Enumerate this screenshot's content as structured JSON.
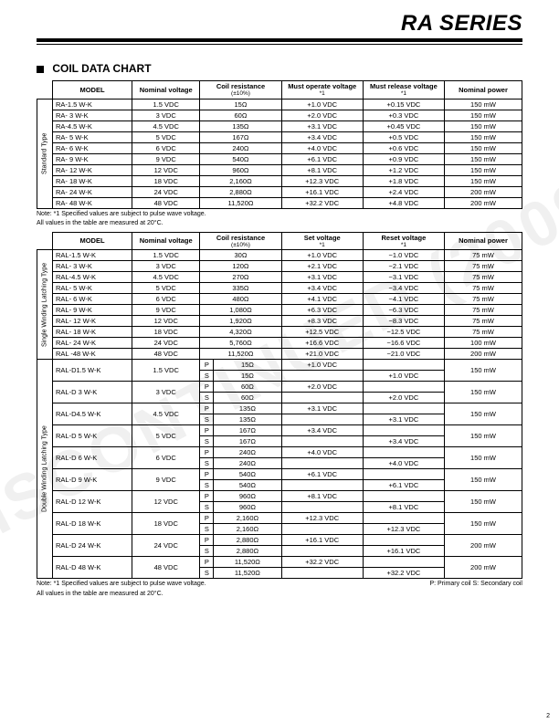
{
  "header": "RA SERIES",
  "watermark": "DISCONTINUED (2009)",
  "page_num": "2",
  "section_title": "COIL DATA CHART",
  "tbl1": {
    "side_label": "Standard Type",
    "headers": {
      "model": "MODEL",
      "nominal_voltage": "Nominal voltage",
      "coil_resistance": "Coil resistance",
      "coil_resistance_sub": "(±10%)",
      "must_operate": "Must operate voltage",
      "must_operate_sub": "*1",
      "must_release": "Must release voltage",
      "must_release_sub": "*1",
      "nominal_power": "Nominal power"
    },
    "rows": [
      {
        "model": "RA-1.5 W-K",
        "nv": "1.5 VDC",
        "cr": "15Ω",
        "mo": "+1.0 VDC",
        "mr": "+0.15 VDC",
        "np": "150 mW"
      },
      {
        "model": "RA-  3 W-K",
        "nv": "3 VDC",
        "cr": "60Ω",
        "mo": "+2.0 VDC",
        "mr": "+0.3  VDC",
        "np": "150 mW"
      },
      {
        "model": "RA-4.5 W-K",
        "nv": "4.5 VDC",
        "cr": "135Ω",
        "mo": "+3.1 VDC",
        "mr": "+0.45 VDC",
        "np": "150 mW"
      },
      {
        "model": "RA-  5 W-K",
        "nv": "5 VDC",
        "cr": "167Ω",
        "mo": "+3.4 VDC",
        "mr": "+0.5  VDC",
        "np": "150 mW"
      },
      {
        "model": "RA-  6 W-K",
        "nv": "6 VDC",
        "cr": "240Ω",
        "mo": "+4.0 VDC",
        "mr": "+0.6  VDC",
        "np": "150 mW"
      },
      {
        "model": "RA-  9 W-K",
        "nv": "9 VDC",
        "cr": "540Ω",
        "mo": "+6.1 VDC",
        "mr": "+0.9  VDC",
        "np": "150 mW"
      },
      {
        "model": "RA- 12 W-K",
        "nv": "12 VDC",
        "cr": "960Ω",
        "mo": "+8.1 VDC",
        "mr": "+1.2  VDC",
        "np": "150 mW"
      },
      {
        "model": "RA- 18 W-K",
        "nv": "18 VDC",
        "cr": "2,160Ω",
        "mo": "+12.3 VDC",
        "mr": "+1.8  VDC",
        "np": "150 mW"
      },
      {
        "model": "RA- 24 W-K",
        "nv": "24 VDC",
        "cr": "2,880Ω",
        "mo": "+16.1 VDC",
        "mr": "+2.4  VDC",
        "np": "200 mW"
      },
      {
        "model": "RA- 48 W-K",
        "nv": "48 VDC",
        "cr": "11,520Ω",
        "mo": "+32.2 VDC",
        "mr": "+4.8  VDC",
        "np": "200 mW"
      }
    ],
    "note1": "Note: *1 Specified values are subject to pulse wave voltage.",
    "note2": "All values in the table are measured at 20°C."
  },
  "tbl2": {
    "side_label_single": "Single Winding Latching Type",
    "side_label_double": "Double Winding Latching Type",
    "headers": {
      "model": "MODEL",
      "nominal_voltage": "Nominal voltage",
      "coil_resistance": "Coil resistance",
      "coil_resistance_sub": "(±10%)",
      "set_voltage": "Set voltage",
      "set_voltage_sub": "*1",
      "reset_voltage": "Reset voltage",
      "reset_voltage_sub": "*1",
      "nominal_power": "Nominal power"
    },
    "single_rows": [
      {
        "model": "RAL-1.5 W-K",
        "nv": "1.5 VDC",
        "cr": "30Ω",
        "sv": "+1.0 VDC",
        "rv": "−1.0 VDC",
        "np": "75 mW"
      },
      {
        "model": "RAL-  3 W-K",
        "nv": "3 VDC",
        "cr": "120Ω",
        "sv": "+2.1 VDC",
        "rv": "−2.1 VDC",
        "np": "75 mW"
      },
      {
        "model": "RAL-4.5 W-K",
        "nv": "4.5 VDC",
        "cr": "270Ω",
        "sv": "+3.1 VDC",
        "rv": "−3.1 VDC",
        "np": "75 mW"
      },
      {
        "model": "RAL-  5 W-K",
        "nv": "5 VDC",
        "cr": "335Ω",
        "sv": "+3.4 VDC",
        "rv": "−3.4 VDC",
        "np": "75 mW"
      },
      {
        "model": "RAL-  6 W-K",
        "nv": "6 VDC",
        "cr": "480Ω",
        "sv": "+4.1 VDC",
        "rv": "−4.1 VDC",
        "np": "75 mW"
      },
      {
        "model": "RAL-  9 W-K",
        "nv": "9 VDC",
        "cr": "1,080Ω",
        "sv": "+6.3 VDC",
        "rv": "−6.3 VDC",
        "np": "75 mW"
      },
      {
        "model": "RAL- 12 W-K",
        "nv": "12 VDC",
        "cr": "1,920Ω",
        "sv": "+8.3 VDC",
        "rv": "−8.3 VDC",
        "np": "75 mW"
      },
      {
        "model": "RAL- 18 W-K",
        "nv": "18 VDC",
        "cr": "4,320Ω",
        "sv": "+12.5 VDC",
        "rv": "−12.5 VDC",
        "np": "75 mW"
      },
      {
        "model": "RAL- 24 W-K",
        "nv": "24 VDC",
        "cr": "5,760Ω",
        "sv": "+16.6 VDC",
        "rv": "−16.6 VDC",
        "np": "100 mW"
      },
      {
        "model": "RAL -48 W-K",
        "nv": "48 VDC",
        "cr": "11,520Ω",
        "sv": "+21.0 VDC",
        "rv": "−21.0 VDC",
        "np": "200 mW"
      }
    ],
    "double_rows": [
      {
        "model": "RAL-D1.5 W-K",
        "nv": "1.5 VDC",
        "p_cr": "15Ω",
        "s_cr": "15Ω",
        "p_sv": "+1.0 VDC",
        "s_rv": "+1.0 VDC",
        "np": "150 mW"
      },
      {
        "model": "RAL-D  3 W-K",
        "nv": "3 VDC",
        "p_cr": "60Ω",
        "s_cr": "60Ω",
        "p_sv": "+2.0 VDC",
        "s_rv": "+2.0 VDC",
        "np": "150 mW"
      },
      {
        "model": "RAL-D4.5 W-K",
        "nv": "4.5 VDC",
        "p_cr": "135Ω",
        "s_cr": "135Ω",
        "p_sv": "+3.1 VDC",
        "s_rv": "+3.1 VDC",
        "np": "150 mW"
      },
      {
        "model": "RAL-D  5 W-K",
        "nv": "5 VDC",
        "p_cr": "167Ω",
        "s_cr": "167Ω",
        "p_sv": "+3.4 VDC",
        "s_rv": "+3.4 VDC",
        "np": "150 mW"
      },
      {
        "model": "RAL-D  6 W-K",
        "nv": "6 VDC",
        "p_cr": "240Ω",
        "s_cr": "240Ω",
        "p_sv": "+4.0 VDC",
        "s_rv": "+4.0 VDC",
        "np": "150 mW"
      },
      {
        "model": "RAL-D  9 W-K",
        "nv": "9 VDC",
        "p_cr": "540Ω",
        "s_cr": "540Ω",
        "p_sv": "+6.1 VDC",
        "s_rv": "+6.1 VDC",
        "np": "150 mW"
      },
      {
        "model": "RAL-D 12 W-K",
        "nv": "12 VDC",
        "p_cr": "960Ω",
        "s_cr": "960Ω",
        "p_sv": "+8.1 VDC",
        "s_rv": "+8.1 VDC",
        "np": "150 mW"
      },
      {
        "model": "RAL-D 18 W-K",
        "nv": "18 VDC",
        "p_cr": "2,160Ω",
        "s_cr": "2,160Ω",
        "p_sv": "+12.3 VDC",
        "s_rv": "+12.3 VDC",
        "np": "150 mW"
      },
      {
        "model": "RAL-D 24 W-K",
        "nv": "24 VDC",
        "p_cr": "2,880Ω",
        "s_cr": "2,880Ω",
        "p_sv": "+16.1 VDC",
        "s_rv": "+16.1 VDC",
        "np": "200 mW"
      },
      {
        "model": "RAL-D 48 W-K",
        "nv": "48 VDC",
        "p_cr": "11,520Ω",
        "s_cr": "11,520Ω",
        "p_sv": "+32.2 VDC",
        "s_rv": "+32.2 VDC",
        "np": "200 mW"
      }
    ],
    "note1": "Note: *1 Specified values are subject to pulse wave voltage.",
    "note2": "All values in the table are measured at 20°C.",
    "ps_note": "P: Primary coil  S: Secondary coil",
    "p_label": "P",
    "s_label": "S"
  }
}
